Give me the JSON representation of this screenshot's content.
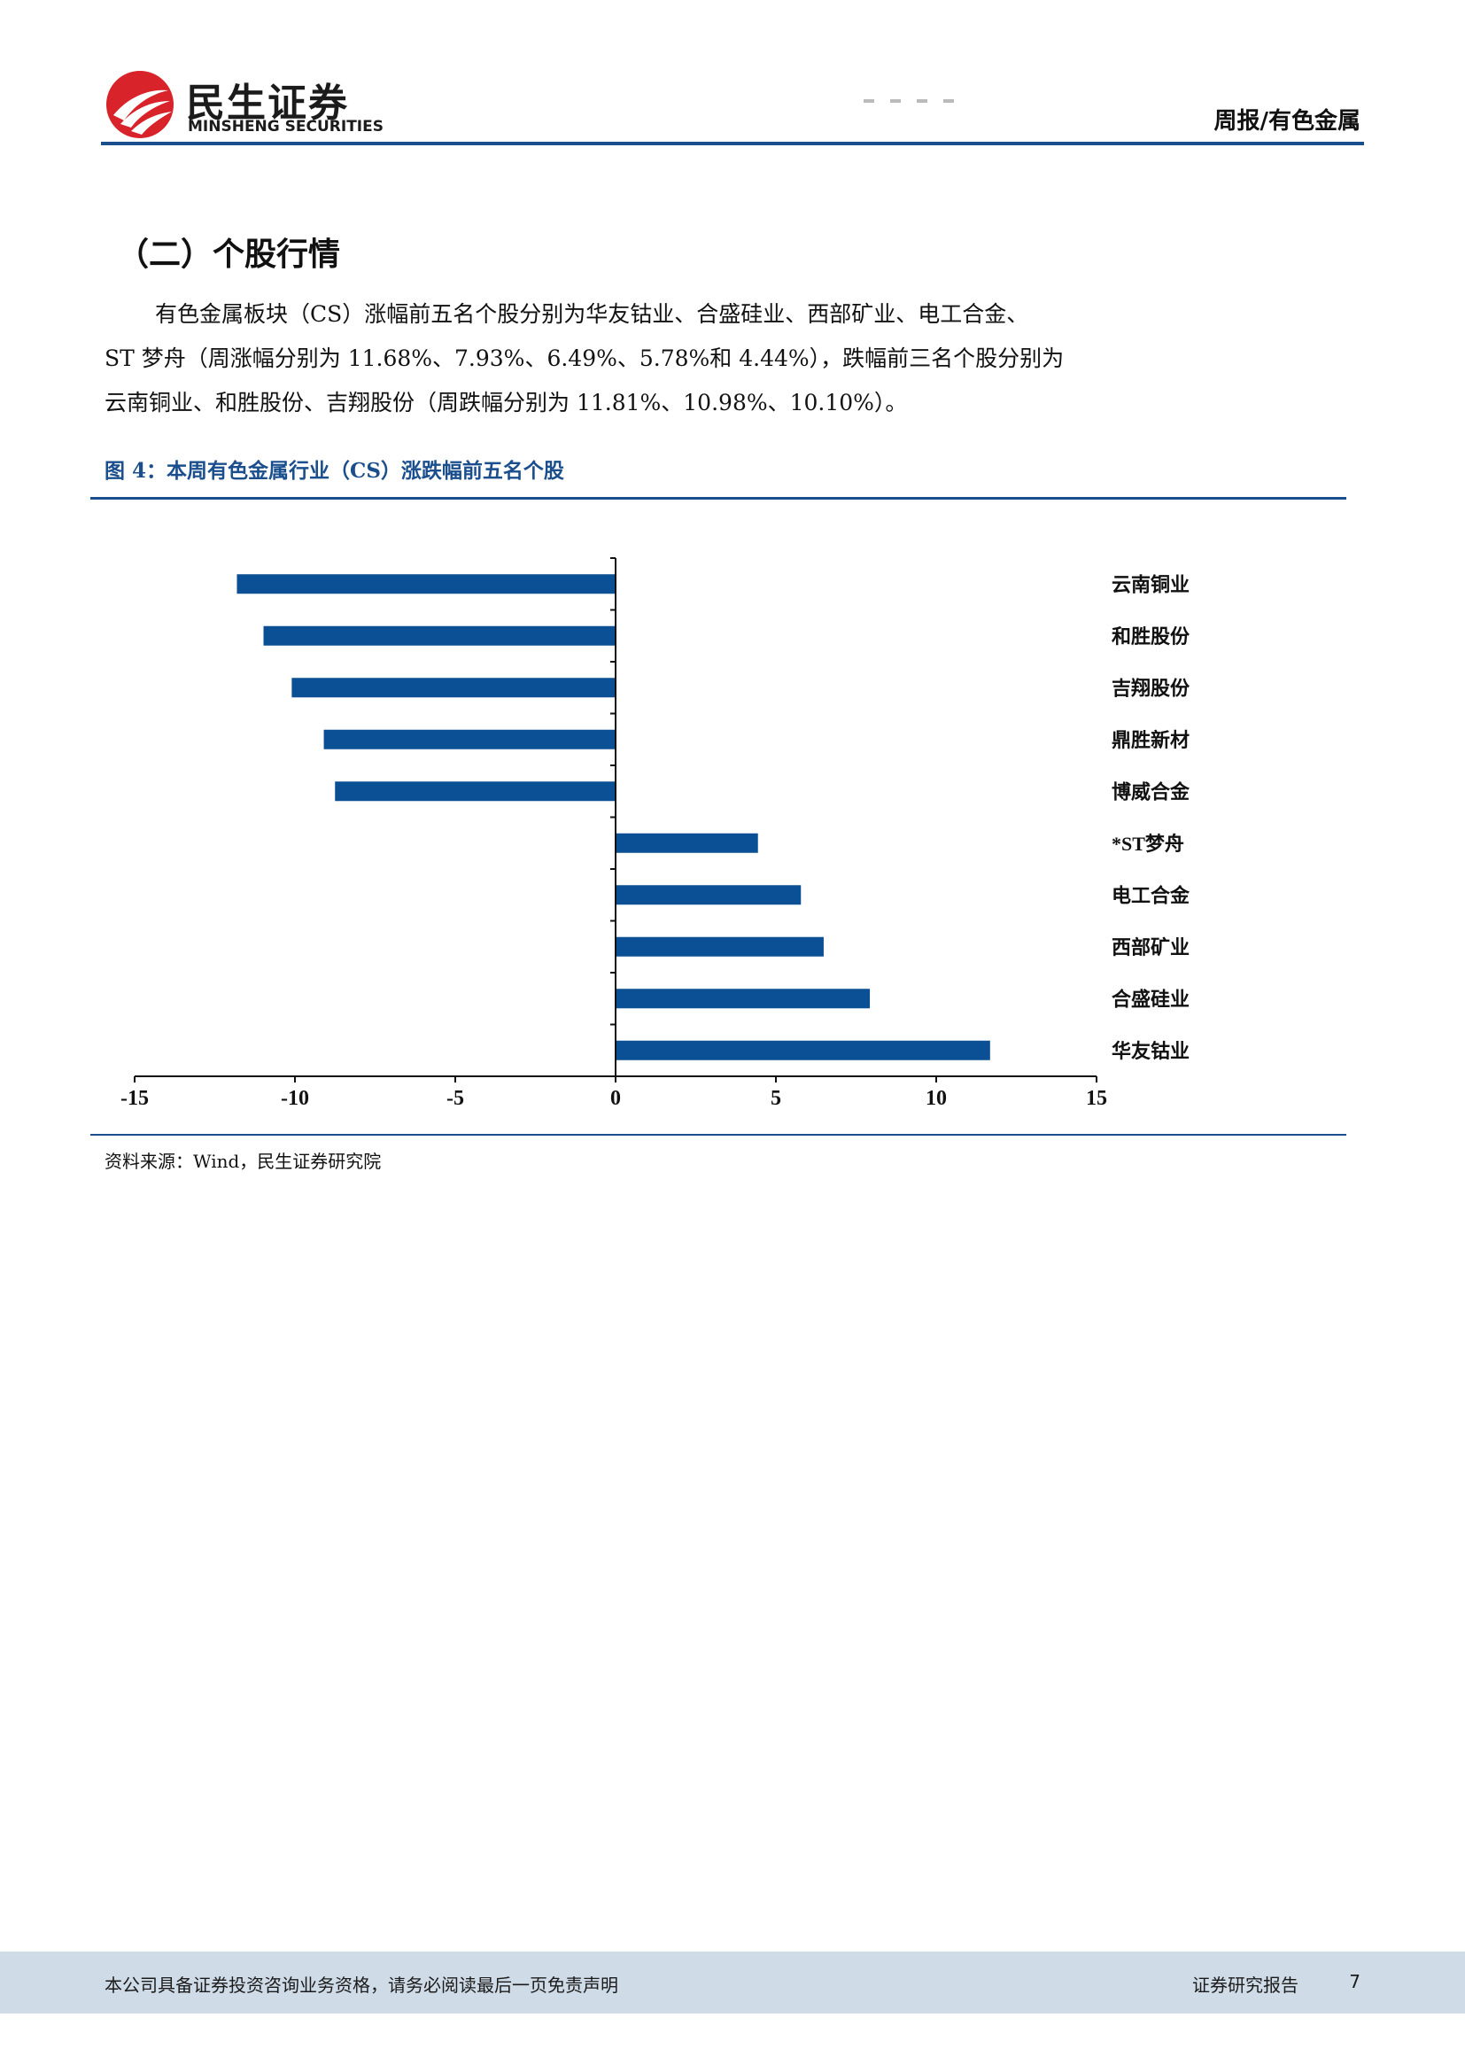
{
  "header": {
    "logo_cn": "民生证券",
    "logo_en": "MINSHENG SECURITIES",
    "title": "周报/有色金属",
    "accent_color": "#1a4e8c",
    "logo_color": "#d8232a"
  },
  "section": {
    "title": "（二）个股行情",
    "paragraph_lines": [
      "有色金属板块（CS）涨幅前五名个股分别为华友钴业、合盛硅业、西部矿业、电工合金、",
      "ST 梦舟（周涨幅分别为 11.68%、7.93%、6.49%、5.78%和 4.44%），跌幅前三名个股分别为",
      "云南铜业、和胜股份、吉翔股份（周跌幅分别为 11.81%、10.98%、10.10%）。"
    ]
  },
  "figure": {
    "title": "图 4：本周有色金属行业（CS）涨跌幅前五名个股",
    "source": "资料来源：Wind，民生证券研究院"
  },
  "chart_data": {
    "type": "bar",
    "orientation": "horizontal",
    "categories": [
      "云南铜业",
      "和胜股份",
      "吉翔股份",
      "鼎胜新材",
      "博威合金",
      "*ST梦舟",
      "电工合金",
      "西部矿业",
      "合盛硅业",
      "华友钴业"
    ],
    "values": [
      -11.81,
      -10.98,
      -10.1,
      -9.1,
      -8.75,
      4.44,
      5.78,
      6.49,
      7.93,
      11.68
    ],
    "xlim": [
      -15,
      15
    ],
    "xticks": [
      "-15",
      "-10",
      "-5",
      "0",
      "5",
      "10",
      "15"
    ],
    "bar_color": "#0b4f94",
    "grid": false,
    "legend": false
  },
  "footer": {
    "disclaimer": "本公司具备证券投资咨询业务资格，请务必阅读最后一页免责声明",
    "report_type": "证券研究报告",
    "page": "7"
  }
}
